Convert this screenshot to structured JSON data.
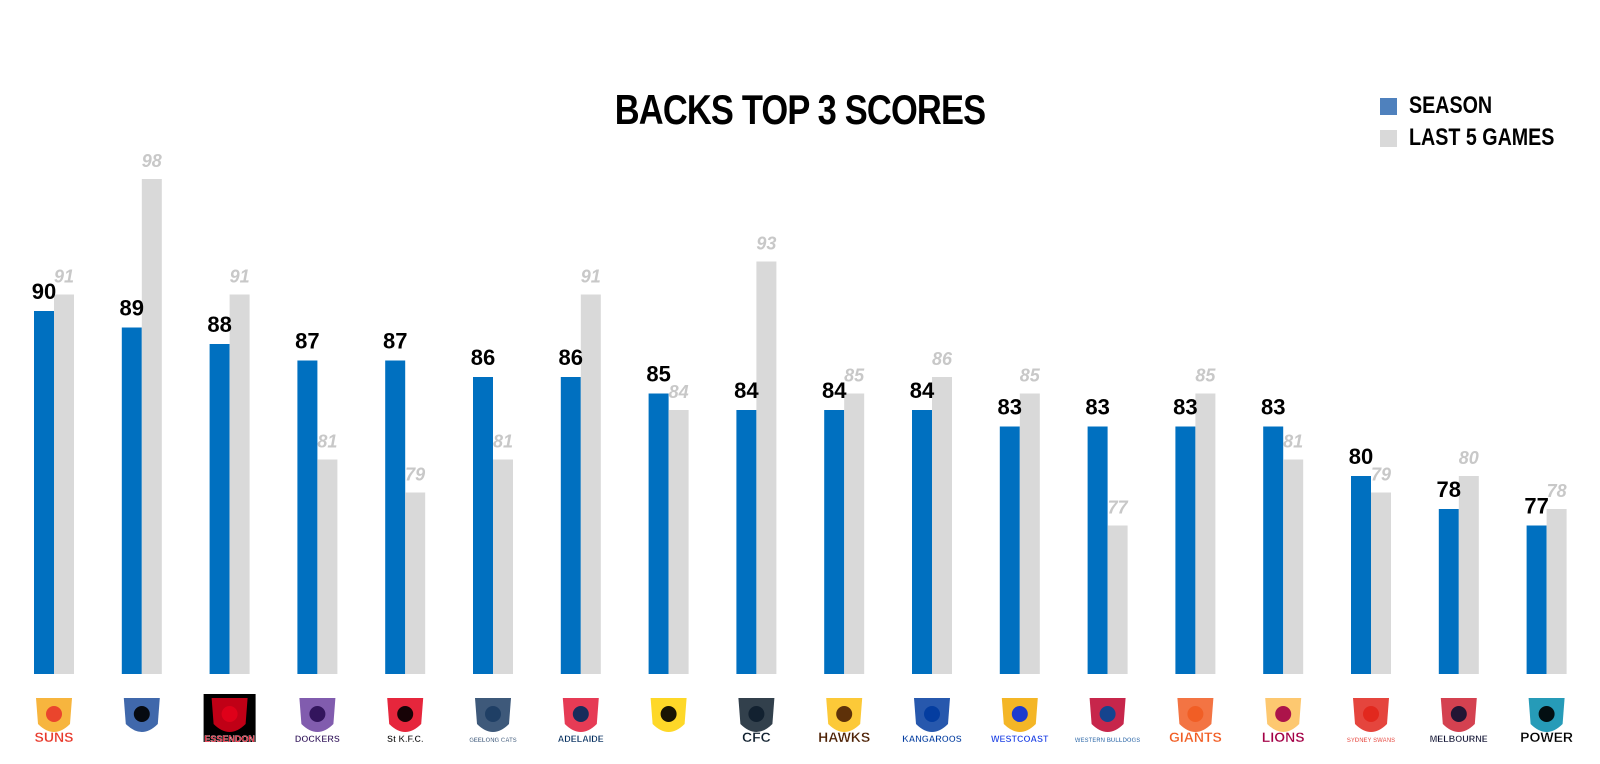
{
  "chart_data": {
    "type": "bar",
    "title": "BACKS TOP 3 SCORES",
    "xlabel": "",
    "ylabel": "",
    "ylim": [
      68,
      100
    ],
    "grid": false,
    "legend_position": "top-right",
    "series": [
      {
        "name": "SEASON",
        "color": "#0070C0",
        "values": [
          90,
          89,
          88,
          87,
          87,
          86,
          86,
          85,
          84,
          84,
          84,
          83,
          83,
          83,
          83,
          80,
          78,
          77
        ]
      },
      {
        "name": "LAST 5 GAMES",
        "color": "#D9D9D9",
        "values": [
          91,
          98,
          91,
          81,
          79,
          81,
          91,
          84,
          93,
          85,
          86,
          85,
          77,
          85,
          81,
          79,
          80,
          78
        ]
      }
    ],
    "categories": [
      {
        "team": "Gold Coast Suns",
        "logo_text": "SUNS",
        "icon": "suns-logo-icon",
        "bg": "#ffffff",
        "fg": "#E8392B",
        "accent": "#F6A81C"
      },
      {
        "team": "Collingwood",
        "logo_text": "",
        "icon": "magpie-logo-icon",
        "bg": "#ffffff",
        "fg": "#000000",
        "accent": "#1F4E9C"
      },
      {
        "team": "Essendon",
        "logo_text": "ESSENDON",
        "icon": "essendon-logo-icon",
        "bg": "#000000",
        "fg": "#E2001A",
        "accent": "#E2001A"
      },
      {
        "team": "Fremantle",
        "logo_text": "DOCKERS",
        "icon": "dockers-logo-icon",
        "bg": "#ffffff",
        "fg": "#2A0D54",
        "accent": "#6B3FA0"
      },
      {
        "team": "St Kilda",
        "logo_text": "St K.F.C.",
        "icon": "st-kilda-logo-icon",
        "bg": "#ffffff",
        "fg": "#000000",
        "accent": "#E2001A"
      },
      {
        "team": "Geelong",
        "logo_text": "GEELONG CATS",
        "icon": "geelong-cats-logo-icon",
        "bg": "#ffffff",
        "fg": "#1C3C63",
        "accent": "#1C3C63"
      },
      {
        "team": "Adelaide",
        "logo_text": "ADELAIDE",
        "icon": "crows-logo-icon",
        "bg": "#ffffff",
        "fg": "#002B5C",
        "accent": "#E21937"
      },
      {
        "team": "Richmond",
        "logo_text": "",
        "icon": "tiger-logo-icon",
        "bg": "#ffffff",
        "fg": "#000000",
        "accent": "#FED102"
      },
      {
        "team": "Carlton",
        "logo_text": "CFC",
        "icon": "carlton-logo-icon",
        "bg": "#ffffff",
        "fg": "#0E1E2D",
        "accent": "#0E1E2D"
      },
      {
        "team": "Hawthorn",
        "logo_text": "HAWKS",
        "icon": "hawk-logo-icon",
        "bg": "#ffffff",
        "fg": "#4D2004",
        "accent": "#FBBF15"
      },
      {
        "team": "North Melbourne",
        "logo_text": "KANGAROOS",
        "icon": "kangaroo-logo-icon",
        "bg": "#ffffff",
        "fg": "#013B9F",
        "accent": "#013B9F"
      },
      {
        "team": "West Coast",
        "logo_text": "WESTCOAST",
        "icon": "eagle-logo-icon",
        "bg": "#ffffff",
        "fg": "#062EE2",
        "accent": "#F2A900"
      },
      {
        "team": "Western Bulldogs",
        "logo_text": "WESTERN BULLDOGS",
        "icon": "bulldog-logo-icon",
        "bg": "#ffffff",
        "fg": "#014896",
        "accent": "#BD002B"
      },
      {
        "team": "GWS Giants",
        "logo_text": "GIANTS",
        "icon": "giants-logo-icon",
        "bg": "#ffffff",
        "fg": "#F15C22",
        "accent": "#F15C22"
      },
      {
        "team": "Brisbane",
        "logo_text": "LIONS",
        "icon": "lion-logo-icon",
        "bg": "#ffffff",
        "fg": "#A30046",
        "accent": "#FDBE57"
      },
      {
        "team": "Sydney",
        "logo_text": "SYDNEY SWANS",
        "icon": "swan-logo-icon",
        "bg": "#ffffff",
        "fg": "#E1251B",
        "accent": "#E1251B"
      },
      {
        "team": "Melbourne",
        "logo_text": "MELBOURNE",
        "icon": "demons-logo-icon",
        "bg": "#ffffff",
        "fg": "#0F1131",
        "accent": "#CC2031"
      },
      {
        "team": "Port Adelaide",
        "logo_text": "POWER",
        "icon": "power-logo-icon",
        "bg": "#ffffff",
        "fg": "#000000",
        "accent": "#008AAB"
      }
    ]
  }
}
